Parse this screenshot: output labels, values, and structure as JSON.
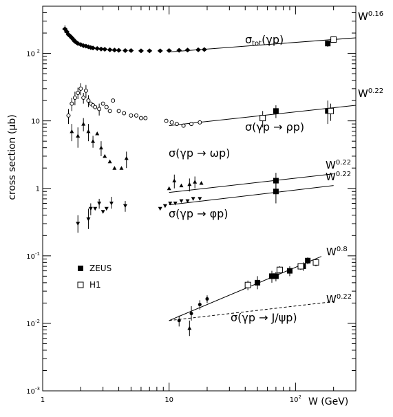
{
  "chart_data": {
    "type": "scatter",
    "title": "",
    "xlabel": "W (GeV)",
    "ylabel": "cross section (μb)",
    "xscale": "log",
    "yscale": "log",
    "xlim": [
      1,
      300
    ],
    "ylim": [
      0.001,
      500
    ],
    "grid": false,
    "legend": {
      "placement": "lower-left",
      "entries": [
        {
          "label": "ZEUS",
          "marker": "filled-square"
        },
        {
          "label": "H1",
          "marker": "open-square"
        }
      ]
    },
    "x_ticks": [
      {
        "value": 1,
        "label": "1"
      },
      {
        "value": 10,
        "label": "10"
      },
      {
        "value": 100,
        "label": "10",
        "exp": "2"
      }
    ],
    "x_tick_unit": "W (GeV)",
    "y_ticks": [
      {
        "value": 0.001,
        "label": "10",
        "exp": "-3"
      },
      {
        "value": 0.01,
        "label": "10",
        "exp": "-2"
      },
      {
        "value": 0.1,
        "label": "10",
        "exp": "-1"
      },
      {
        "value": 1,
        "label": "1",
        "exp": ""
      },
      {
        "value": 10,
        "label": "10",
        "exp": ""
      },
      {
        "value": 100,
        "label": "10",
        "exp": "2"
      }
    ],
    "curve_labels": {
      "tot": {
        "main": "σ",
        "sub": "tot",
        "rest": "(γp)"
      },
      "rho": "σ(γp → ρp)",
      "omega": "σ(γp → ωp)",
      "phi": "σ(γp → φp)",
      "jpsi": "σ(γp → J/ψp)"
    },
    "power_labels": [
      {
        "base": "W",
        "exp": "0.16"
      },
      {
        "base": "W",
        "exp": "0.22"
      },
      {
        "base": "W",
        "exp": "0.22"
      },
      {
        "base": "W",
        "exp": "0.22"
      },
      {
        "base": "W",
        "exp": "0.8"
      },
      {
        "base": "W",
        "exp": "0.22"
      }
    ],
    "fit_lines": [
      {
        "name": "tot",
        "x": [
          10,
          300
        ],
        "y": [
          105,
          170
        ],
        "style": "solid"
      },
      {
        "name": "rho",
        "x": [
          10,
          300
        ],
        "y": [
          8.5,
          17
        ],
        "style": "solid"
      },
      {
        "name": "omega",
        "x": [
          10,
          200
        ],
        "y": [
          0.87,
          1.64
        ],
        "style": "solid"
      },
      {
        "name": "phi",
        "x": [
          10,
          200
        ],
        "y": [
          0.57,
          1.1
        ],
        "style": "solid"
      },
      {
        "name": "jpsi",
        "x": [
          10,
          160
        ],
        "y": [
          0.011,
          0.098
        ],
        "style": "solid"
      },
      {
        "name": "jpsi-soft",
        "x": [
          10,
          200
        ],
        "y": [
          0.011,
          0.021
        ],
        "style": "dashed"
      }
    ],
    "series": [
      {
        "name": "ZEUS",
        "marker": "filled-square",
        "points": [
          {
            "x": 180,
            "y": 140,
            "err": [
              125,
              155
            ]
          },
          {
            "x": 70,
            "y": 14,
            "err": [
              11,
              17
            ]
          },
          {
            "x": 180,
            "y": 14,
            "err": [
              9,
              20
            ]
          },
          {
            "x": 70,
            "y": 1.3,
            "err": [
              1.0,
              1.7
            ]
          },
          {
            "x": 70,
            "y": 0.9,
            "err": [
              0.6,
              1.2
            ]
          },
          {
            "x": 50,
            "y": 0.04,
            "err": [
              0.032,
              0.05
            ]
          },
          {
            "x": 65,
            "y": 0.05,
            "err": [
              0.04,
              0.06
            ]
          },
          {
            "x": 70,
            "y": 0.05,
            "err": [
              0.042,
              0.058
            ]
          },
          {
            "x": 90,
            "y": 0.06,
            "err": [
              0.05,
              0.07
            ]
          },
          {
            "x": 115,
            "y": 0.07,
            "err": [
              0.06,
              0.08
            ]
          },
          {
            "x": 125,
            "y": 0.085,
            "err": [
              0.075,
              0.095
            ]
          }
        ]
      },
      {
        "name": "H1",
        "marker": "open-square",
        "points": [
          {
            "x": 200,
            "y": 160,
            "err": [
              150,
              170
            ]
          },
          {
            "x": 55,
            "y": 11,
            "err": [
              8,
              14
            ]
          },
          {
            "x": 190,
            "y": 14,
            "err": [
              10,
              18
            ]
          },
          {
            "x": 42,
            "y": 0.037,
            "err": [
              0.031,
              0.043
            ]
          },
          {
            "x": 75,
            "y": 0.062,
            "err": [
              0.054,
              0.07
            ]
          },
          {
            "x": 110,
            "y": 0.07,
            "err": [
              0.062,
              0.078
            ]
          },
          {
            "x": 145,
            "y": 0.08,
            "err": [
              0.07,
              0.09
            ]
          }
        ]
      },
      {
        "name": "total",
        "marker": "filled-diamond",
        "points": [
          {
            "x": 1.5,
            "y": 230,
            "err": [
              200,
              260
            ]
          },
          {
            "x": 1.55,
            "y": 210
          },
          {
            "x": 1.6,
            "y": 190
          },
          {
            "x": 1.65,
            "y": 180
          },
          {
            "x": 1.7,
            "y": 170
          },
          {
            "x": 1.75,
            "y": 160
          },
          {
            "x": 1.8,
            "y": 150
          },
          {
            "x": 1.85,
            "y": 145
          },
          {
            "x": 1.9,
            "y": 140
          },
          {
            "x": 2.0,
            "y": 135
          },
          {
            "x": 2.1,
            "y": 130
          },
          {
            "x": 2.2,
            "y": 128
          },
          {
            "x": 2.3,
            "y": 125
          },
          {
            "x": 2.4,
            "y": 122
          },
          {
            "x": 2.5,
            "y": 120
          },
          {
            "x": 2.7,
            "y": 118
          },
          {
            "x": 2.9,
            "y": 116
          },
          {
            "x": 3.1,
            "y": 115
          },
          {
            "x": 3.4,
            "y": 113
          },
          {
            "x": 3.7,
            "y": 112
          },
          {
            "x": 4.0,
            "y": 111
          },
          {
            "x": 4.5,
            "y": 110
          },
          {
            "x": 5.0,
            "y": 110
          },
          {
            "x": 6.0,
            "y": 109
          },
          {
            "x": 7.0,
            "y": 109
          },
          {
            "x": 8.5,
            "y": 109
          },
          {
            "x": 10.0,
            "y": 110
          },
          {
            "x": 12.0,
            "y": 111
          },
          {
            "x": 14.0,
            "y": 112
          },
          {
            "x": 17.0,
            "y": 113
          },
          {
            "x": 19.0,
            "y": 114
          }
        ]
      },
      {
        "name": "rho",
        "marker": "open-circle",
        "points": [
          {
            "x": 1.6,
            "y": 12,
            "err": [
              9,
              15
            ]
          },
          {
            "x": 1.7,
            "y": 18,
            "err": [
              14,
              22
            ]
          },
          {
            "x": 1.8,
            "y": 22,
            "err": [
              17,
              27
            ]
          },
          {
            "x": 1.9,
            "y": 26,
            "err": [
              21,
              31
            ]
          },
          {
            "x": 2.0,
            "y": 30,
            "err": [
              24,
              36
            ]
          },
          {
            "x": 2.1,
            "y": 22,
            "err": [
              18,
              26
            ]
          },
          {
            "x": 2.2,
            "y": 28,
            "err": [
              22,
              34
            ]
          },
          {
            "x": 2.3,
            "y": 20,
            "err": [
              16,
              24
            ]
          },
          {
            "x": 2.4,
            "y": 18
          },
          {
            "x": 2.5,
            "y": 17
          },
          {
            "x": 2.6,
            "y": 16
          },
          {
            "x": 2.8,
            "y": 15,
            "err": [
              12,
              18
            ]
          },
          {
            "x": 3.0,
            "y": 18
          },
          {
            "x": 3.2,
            "y": 16
          },
          {
            "x": 3.4,
            "y": 14
          },
          {
            "x": 3.6,
            "y": 20
          },
          {
            "x": 4.0,
            "y": 14
          },
          {
            "x": 4.4,
            "y": 13
          },
          {
            "x": 5.0,
            "y": 12
          },
          {
            "x": 5.5,
            "y": 12
          },
          {
            "x": 6.0,
            "y": 11
          },
          {
            "x": 6.5,
            "y": 11
          },
          {
            "x": 9.5,
            "y": 10
          },
          {
            "x": 10.5,
            "y": 9.5
          },
          {
            "x": 11.5,
            "y": 9
          },
          {
            "x": 13.0,
            "y": 8.5
          },
          {
            "x": 15.0,
            "y": 9
          },
          {
            "x": 17.5,
            "y": 9.5
          }
        ]
      },
      {
        "name": "omega",
        "marker": "filled-triangle-up",
        "points": [
          {
            "x": 1.7,
            "y": 7,
            "err": [
              5,
              9
            ]
          },
          {
            "x": 1.9,
            "y": 6,
            "err": [
              4,
              8
            ]
          },
          {
            "x": 2.1,
            "y": 9,
            "err": [
              7,
              11
            ]
          },
          {
            "x": 2.3,
            "y": 7,
            "err": [
              5,
              9
            ]
          },
          {
            "x": 2.5,
            "y": 5,
            "err": [
              4,
              6
            ]
          },
          {
            "x": 2.7,
            "y": 6.5
          },
          {
            "x": 2.9,
            "y": 4,
            "err": [
              3,
              5
            ]
          },
          {
            "x": 3.1,
            "y": 3
          },
          {
            "x": 3.4,
            "y": 2.5
          },
          {
            "x": 3.7,
            "y": 2
          },
          {
            "x": 4.2,
            "y": 2
          },
          {
            "x": 4.6,
            "y": 2.8,
            "err": [
              2,
              3.5
            ]
          },
          {
            "x": 10.0,
            "y": 1.0
          },
          {
            "x": 11.0,
            "y": 1.3,
            "err": [
              1.0,
              1.6
            ]
          },
          {
            "x": 12.5,
            "y": 1.1
          },
          {
            "x": 14.5,
            "y": 1.15,
            "err": [
              0.9,
              1.4
            ]
          },
          {
            "x": 16.0,
            "y": 1.25,
            "err": [
              1.0,
              1.5
            ]
          },
          {
            "x": 18.0,
            "y": 1.2
          }
        ]
      },
      {
        "name": "phi",
        "marker": "filled-triangle-down",
        "points": [
          {
            "x": 1.9,
            "y": 0.3,
            "err": [
              0.22,
              0.4
            ]
          },
          {
            "x": 2.3,
            "y": 0.35,
            "err": [
              0.25,
              0.5
            ]
          },
          {
            "x": 2.4,
            "y": 0.5,
            "err": [
              0.4,
              0.6
            ]
          },
          {
            "x": 2.6,
            "y": 0.5
          },
          {
            "x": 2.8,
            "y": 0.6,
            "err": [
              0.5,
              0.7
            ]
          },
          {
            "x": 3.0,
            "y": 0.45
          },
          {
            "x": 3.2,
            "y": 0.5
          },
          {
            "x": 3.5,
            "y": 0.6,
            "err": [
              0.5,
              0.75
            ]
          },
          {
            "x": 4.5,
            "y": 0.55,
            "err": [
              0.45,
              0.65
            ]
          },
          {
            "x": 8.5,
            "y": 0.5
          },
          {
            "x": 9.3,
            "y": 0.55
          },
          {
            "x": 10.2,
            "y": 0.6
          },
          {
            "x": 11.2,
            "y": 0.6
          },
          {
            "x": 12.5,
            "y": 0.65
          },
          {
            "x": 14.0,
            "y": 0.65
          },
          {
            "x": 15.5,
            "y": 0.7
          },
          {
            "x": 17.5,
            "y": 0.7
          }
        ]
      },
      {
        "name": "jpsi",
        "marker": "filled-circle",
        "points": [
          {
            "x": 12.0,
            "y": 0.011,
            "err": [
              0.009,
              0.013
            ]
          },
          {
            "x": 15.0,
            "y": 0.014,
            "err": [
              0.011,
              0.018
            ]
          },
          {
            "x": 17.5,
            "y": 0.019,
            "err": [
              0.016,
              0.022
            ]
          },
          {
            "x": 20.0,
            "y": 0.023,
            "err": [
              0.02,
              0.026
            ]
          }
        ]
      },
      {
        "name": "jpsi-low",
        "marker": "filled-triangle-up",
        "points": [
          {
            "x": 14.5,
            "y": 0.0085,
            "err": [
              0.0065,
              0.011
            ]
          }
        ]
      }
    ]
  }
}
